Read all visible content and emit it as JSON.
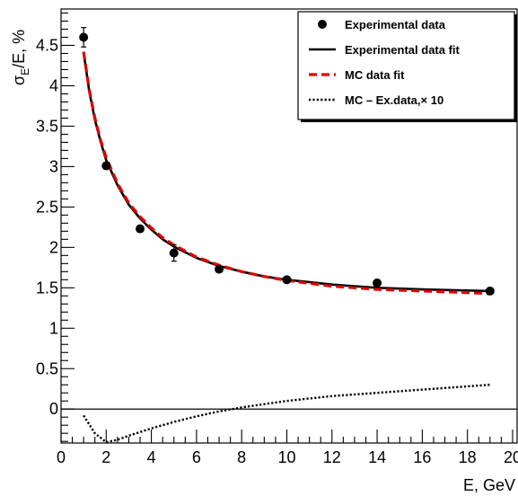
{
  "chart_data": {
    "type": "scatter",
    "xlabel": "E, GeV",
    "ylabel_main": "σ",
    "ylabel_sub": "E",
    "ylabel_rest": "/E, %",
    "xlim": [
      0,
      20.2
    ],
    "ylim": [
      -0.42,
      4.95
    ],
    "grid": false,
    "legend_position": "top-right",
    "x_ticks": [
      0,
      2,
      4,
      6,
      8,
      10,
      12,
      14,
      16,
      18,
      20
    ],
    "x_tick_labels": [
      "0",
      "2",
      "4",
      "6",
      "8",
      "10",
      "12",
      "14",
      "16",
      "18",
      "20"
    ],
    "y_ticks": [
      0,
      0.5,
      1,
      1.5,
      2,
      2.5,
      3,
      3.5,
      4,
      4.5
    ],
    "y_tick_labels": [
      "0",
      "0.5",
      "1",
      "1.5",
      "2",
      "2.5",
      "3",
      "3.5",
      "4",
      "4.5"
    ],
    "zero_line": 0,
    "series": [
      {
        "name": "Experimental data",
        "kind": "points",
        "color": "#000000",
        "x": [
          1,
          2,
          3.5,
          5,
          7,
          10,
          14,
          19
        ],
        "y": [
          4.6,
          3.01,
          2.23,
          1.93,
          1.73,
          1.6,
          1.56,
          1.46
        ],
        "yerr": [
          0.12,
          0.04,
          0.04,
          0.1,
          0.03,
          0.03,
          0.03,
          0.03
        ]
      },
      {
        "name": "Experimental data fit",
        "kind": "line",
        "color": "#000000",
        "style": "solid",
        "x": [
          1,
          1.25,
          1.5,
          1.75,
          2,
          2.5,
          3,
          3.5,
          4,
          4.5,
          5,
          6,
          7,
          8,
          9,
          10,
          12,
          14,
          16,
          19
        ],
        "y": [
          4.42,
          3.93,
          3.58,
          3.31,
          3.08,
          2.77,
          2.53,
          2.36,
          2.22,
          2.1,
          2.01,
          1.87,
          1.77,
          1.7,
          1.64,
          1.6,
          1.54,
          1.5,
          1.48,
          1.46
        ]
      },
      {
        "name": "MC data fit",
        "kind": "line",
        "color": "#e00000",
        "style": "dashed",
        "x": [
          1,
          1.25,
          1.5,
          1.75,
          2,
          2.5,
          3,
          3.5,
          4,
          4.5,
          5,
          6,
          7,
          8,
          9,
          10,
          12,
          14,
          16,
          19
        ],
        "y": [
          4.42,
          3.95,
          3.6,
          3.33,
          3.11,
          2.79,
          2.55,
          2.38,
          2.24,
          2.12,
          2.03,
          1.88,
          1.78,
          1.7,
          1.64,
          1.59,
          1.52,
          1.48,
          1.46,
          1.43
        ]
      },
      {
        "name": "MC – Ex.data,× 10",
        "kind": "line",
        "color": "#000000",
        "style": "dotted",
        "x": [
          1,
          1.5,
          2,
          2.5,
          3,
          4,
          5,
          6,
          7,
          8,
          10,
          12,
          14,
          16,
          19
        ],
        "y": [
          -0.08,
          -0.3,
          -0.41,
          -0.38,
          -0.33,
          -0.24,
          -0.16,
          -0.09,
          -0.03,
          0.02,
          0.1,
          0.16,
          0.2,
          0.24,
          0.3
        ]
      }
    ]
  }
}
